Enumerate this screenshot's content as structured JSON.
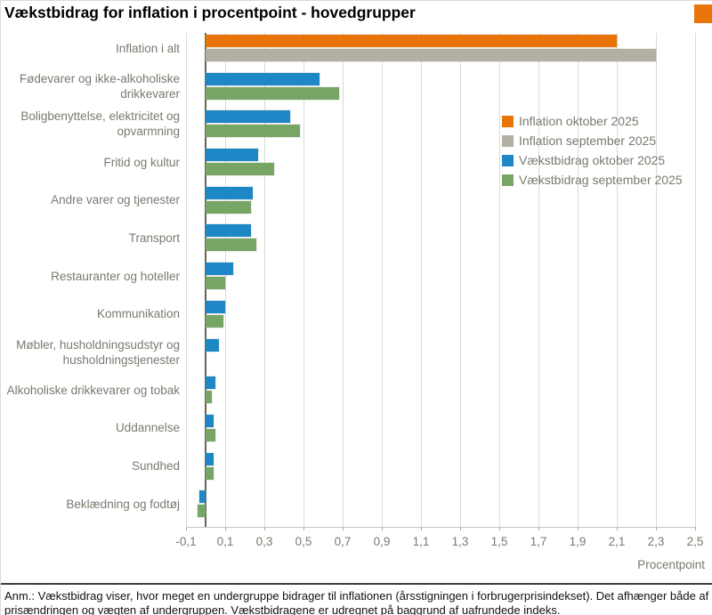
{
  "title": "Vækstbidrag for inflation i procentpoint - hovedgrupper",
  "footnote": "Anm.: Vækstbidrag viser, hvor meget en undergruppe bidrager til inflationen (årsstigningen i forbrugerprisindekset). Det afhænger både af prisændringen og vægten af undergruppen. Vækstbidragene er udregnet på baggrund af uafrundede indeks.",
  "colors": {
    "orange": "#e87405",
    "gray": "#b2b0a3",
    "blue": "#1e87c6",
    "green": "#77a566",
    "logo": "#e8750a",
    "gridline": "#dbdad4",
    "zero_line": "#65645a",
    "label_gray": "#7a796f"
  },
  "chart_data": {
    "type": "bar",
    "orientation": "horizontal",
    "title": "Vækstbidrag for inflation i procentpoint - hovedgrupper",
    "xlabel": "Procentpoint",
    "xlim": [
      -0.1,
      2.5
    ],
    "grid": true,
    "legend_position": "upper-right-inside",
    "xticks": [
      "-0,1",
      "0,1",
      "0,3",
      "0,5",
      "0,7",
      "0,9",
      "1,1",
      "1,3",
      "1,5",
      "1,7",
      "1,9",
      "2,1",
      "2,3",
      "2,5"
    ],
    "categories": [
      "Inflation i alt",
      "Fødevarer og ikke-alkoholiske drikkevarer",
      "Boligbenyttelse, elektricitet og opvarmning",
      "Fritid og kultur",
      "Andre varer og tjenester",
      "Transport",
      "Restauranter og hoteller",
      "Kommunikation",
      "Møbler, husholdningsudstyr og husholdningstjenester",
      "Alkoholiske drikkevarer og tobak",
      "Uddannelse",
      "Sundhed",
      "Beklædning og fodtøj"
    ],
    "series": [
      {
        "name": "Inflation oktober 2025",
        "color": "#e87405",
        "values": [
          2.1,
          null,
          null,
          null,
          null,
          null,
          null,
          null,
          null,
          null,
          null,
          null,
          null
        ]
      },
      {
        "name": "Inflation september 2025",
        "color": "#b2b0a3",
        "values": [
          2.3,
          null,
          null,
          null,
          null,
          null,
          null,
          null,
          null,
          null,
          null,
          null,
          null
        ]
      },
      {
        "name": "Vækstbidrag oktober 2025",
        "color": "#1e87c6",
        "values": [
          null,
          0.58,
          0.43,
          0.27,
          0.24,
          0.23,
          0.14,
          0.1,
          0.07,
          0.05,
          0.04,
          0.04,
          -0.03
        ]
      },
      {
        "name": "Vækstbidrag september 2025",
        "color": "#77a566",
        "values": [
          null,
          0.68,
          0.48,
          0.35,
          0.23,
          0.26,
          0.1,
          0.09,
          0.0,
          0.03,
          0.05,
          0.04,
          -0.04
        ]
      }
    ]
  }
}
